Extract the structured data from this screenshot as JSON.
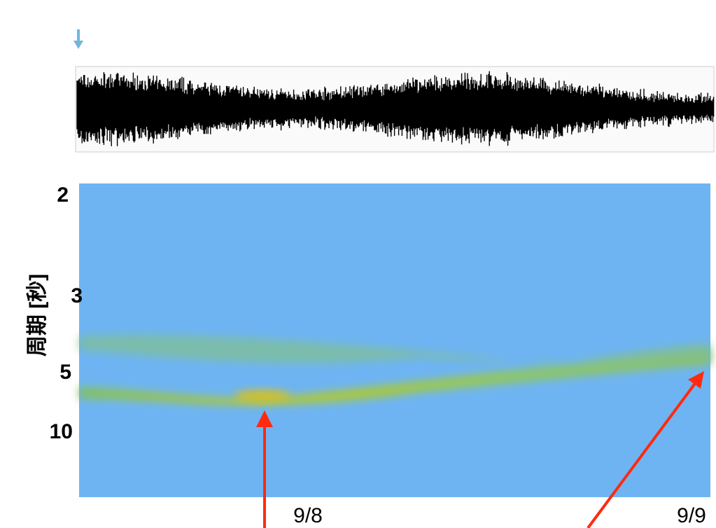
{
  "y_axis": {
    "label": "周期 [秒]",
    "ticks": [
      "2",
      "3",
      "5",
      "10"
    ]
  },
  "x_labels": [
    "9/8",
    "9/9"
  ]
}
